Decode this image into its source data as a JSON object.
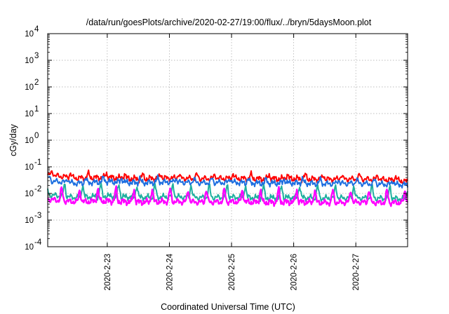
{
  "chart_data": {
    "type": "line",
    "title": "/data/run/goesPlots/archive/2020-02-27/19:00/flux/../bryn/5daysMoon.plot",
    "xlabel": "Coordinated Universal Time (UTC)",
    "ylabel": "cGy/day",
    "y_scale": "log",
    "ylim": [
      0.0001,
      10000
    ],
    "y_ticks": [
      {
        "base": "10",
        "exp": "-4",
        "value": 0.0001
      },
      {
        "base": "10",
        "exp": "-3",
        "value": 0.001
      },
      {
        "base": "10",
        "exp": "-2",
        "value": 0.01
      },
      {
        "base": "10",
        "exp": "-1",
        "value": 0.1
      },
      {
        "base": "10",
        "exp": "0",
        "value": 1
      },
      {
        "base": "10",
        "exp": "1",
        "value": 10
      },
      {
        "base": "10",
        "exp": "2",
        "value": 100
      },
      {
        "base": "10",
        "exp": "3",
        "value": 1000
      },
      {
        "base": "10",
        "exp": "4",
        "value": 10000
      }
    ],
    "xlim": [
      "2020-02-22 01:00",
      "2020-02-27 20:00"
    ],
    "x_ticks": [
      "2020-2-23",
      "2020-2-24",
      "2020-2-25",
      "2020-2-26",
      "2020-2-27"
    ],
    "grid": true,
    "series": [
      {
        "color": "#ff0000",
        "x": [
          "2020-02-22 01:00",
          "2020-02-22 12:00",
          "2020-02-23 00:00",
          "2020-02-23 12:00",
          "2020-02-24 00:00",
          "2020-02-24 12:00",
          "2020-02-25 00:00",
          "2020-02-25 12:00",
          "2020-02-26 00:00",
          "2020-02-26 12:00",
          "2020-02-27 00:00",
          "2020-02-27 12:00",
          "2020-02-27 20:00"
        ],
        "values": [
          0.05,
          0.038,
          0.04,
          0.035,
          0.038,
          0.036,
          0.037,
          0.035,
          0.036,
          0.034,
          0.035,
          0.033,
          0.028
        ]
      },
      {
        "color": "#1f6fe0",
        "x": [
          "2020-02-22 01:00",
          "2020-02-22 12:00",
          "2020-02-23 00:00",
          "2020-02-23 12:00",
          "2020-02-24 00:00",
          "2020-02-24 12:00",
          "2020-02-25 00:00",
          "2020-02-25 12:00",
          "2020-02-26 00:00",
          "2020-02-26 12:00",
          "2020-02-27 00:00",
          "2020-02-27 12:00",
          "2020-02-27 20:00"
        ],
        "values": [
          0.03,
          0.024,
          0.028,
          0.025,
          0.027,
          0.025,
          0.026,
          0.024,
          0.025,
          0.023,
          0.024,
          0.022,
          0.021
        ]
      },
      {
        "color": "#20b0a0",
        "x": [
          "2020-02-22 01:00",
          "2020-02-22 12:00",
          "2020-02-23 00:00",
          "2020-02-23 12:00",
          "2020-02-24 00:00",
          "2020-02-24 12:00",
          "2020-02-25 00:00",
          "2020-02-25 12:00",
          "2020-02-26 00:00",
          "2020-02-26 12:00",
          "2020-02-27 00:00",
          "2020-02-27 12:00",
          "2020-02-27 20:00"
        ],
        "values": [
          0.009,
          0.007,
          0.008,
          0.007,
          0.0075,
          0.007,
          0.0072,
          0.0068,
          0.007,
          0.0066,
          0.0068,
          0.0065,
          0.0062
        ]
      },
      {
        "color": "#ff00ff",
        "x": [
          "2020-02-22 01:00",
          "2020-02-22 12:00",
          "2020-02-23 00:00",
          "2020-02-23 12:00",
          "2020-02-24 00:00",
          "2020-02-24 12:00",
          "2020-02-25 00:00",
          "2020-02-25 12:00",
          "2020-02-26 00:00",
          "2020-02-26 12:00",
          "2020-02-27 00:00",
          "2020-02-27 12:00",
          "2020-02-27 20:00"
        ],
        "values": [
          0.006,
          0.0048,
          0.0052,
          0.0047,
          0.005,
          0.0047,
          0.0049,
          0.0046,
          0.0048,
          0.0045,
          0.0047,
          0.0045,
          0.0046
        ]
      }
    ]
  }
}
